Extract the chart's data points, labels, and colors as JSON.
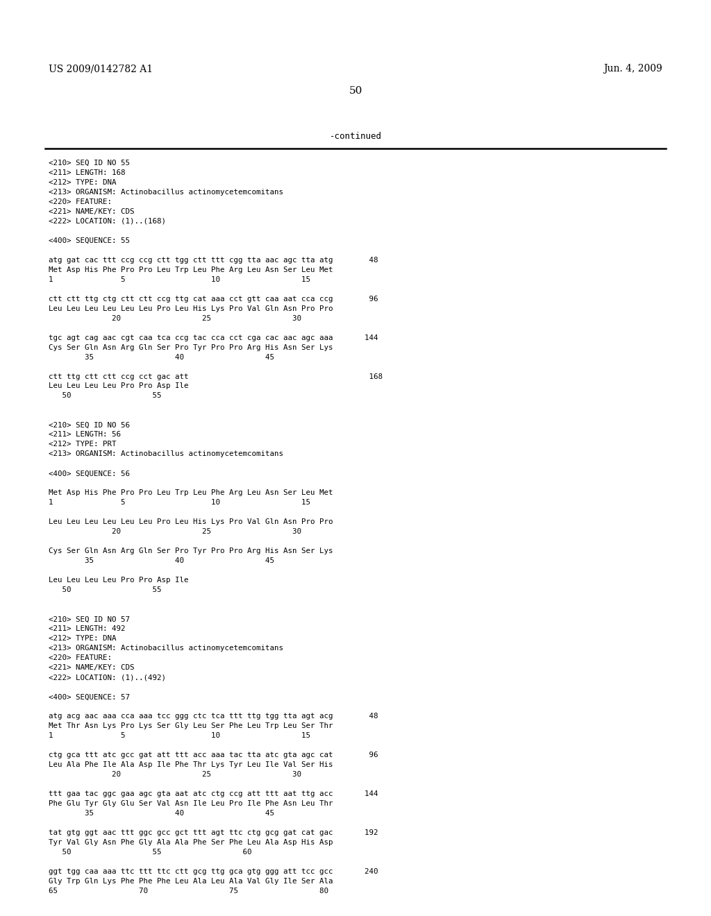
{
  "background_color": "#ffffff",
  "header_left": "US 2009/0142782 A1",
  "header_right": "Jun. 4, 2009",
  "page_number": "50",
  "continued_text": "-continued",
  "content_lines": [
    "<210> SEQ ID NO 55",
    "<211> LENGTH: 168",
    "<212> TYPE: DNA",
    "<213> ORGANISM: Actinobacillus actinomycetemcomitans",
    "<220> FEATURE:",
    "<221> NAME/KEY: CDS",
    "<222> LOCATION: (1)..(168)",
    "",
    "<400> SEQUENCE: 55",
    "",
    "atg gat cac ttt ccg ccg ctt tgg ctt ttt cgg tta aac agc tta atg        48",
    "Met Asp His Phe Pro Pro Leu Trp Leu Phe Arg Leu Asn Ser Leu Met",
    "1               5                   10                  15",
    "",
    "ctt ctt ttg ctg ctt ctt ccg ttg cat aaa cct gtt caa aat cca ccg        96",
    "Leu Leu Leu Leu Leu Leu Pro Leu His Lys Pro Val Gln Asn Pro Pro",
    "              20                  25                  30",
    "",
    "tgc agt cag aac cgt caa tca ccg tac cca cct cga cac aac agc aaa       144",
    "Cys Ser Gln Asn Arg Gln Ser Pro Tyr Pro Pro Arg His Asn Ser Lys",
    "        35                  40                  45",
    "",
    "ctt ttg ctt ctt ccg cct gac att                                        168",
    "Leu Leu Leu Leu Pro Pro Asp Ile",
    "   50                  55",
    "",
    "",
    "<210> SEQ ID NO 56",
    "<211> LENGTH: 56",
    "<212> TYPE: PRT",
    "<213> ORGANISM: Actinobacillus actinomycetemcomitans",
    "",
    "<400> SEQUENCE: 56",
    "",
    "Met Asp His Phe Pro Pro Leu Trp Leu Phe Arg Leu Asn Ser Leu Met",
    "1               5                   10                  15",
    "",
    "Leu Leu Leu Leu Leu Leu Pro Leu His Lys Pro Val Gln Asn Pro Pro",
    "              20                  25                  30",
    "",
    "Cys Ser Gln Asn Arg Gln Ser Pro Tyr Pro Pro Arg His Asn Ser Lys",
    "        35                  40                  45",
    "",
    "Leu Leu Leu Leu Pro Pro Asp Ile",
    "   50                  55",
    "",
    "",
    "<210> SEQ ID NO 57",
    "<211> LENGTH: 492",
    "<212> TYPE: DNA",
    "<213> ORGANISM: Actinobacillus actinomycetemcomitans",
    "<220> FEATURE:",
    "<221> NAME/KEY: CDS",
    "<222> LOCATION: (1)..(492)",
    "",
    "<400> SEQUENCE: 57",
    "",
    "atg acg aac aaa cca aaa tcc ggg ctc tca ttt ttg tgg tta agt acg        48",
    "Met Thr Asn Lys Pro Lys Ser Gly Leu Ser Phe Leu Trp Leu Ser Thr",
    "1               5                   10                  15",
    "",
    "ctg gca ttt atc gcc gat att ttt acc aaa tac tta atc gta agc cat        96",
    "Leu Ala Phe Ile Ala Asp Ile Phe Thr Lys Tyr Leu Ile Val Ser His",
    "              20                  25                  30",
    "",
    "ttt gaa tac ggc gaa agc gta aat atc ctg ccg att ttt aat ttg acc       144",
    "Phe Glu Tyr Gly Glu Ser Val Asn Ile Leu Pro Ile Phe Asn Leu Thr",
    "        35                  40                  45",
    "",
    "tat gtg ggt aac ttt ggc gcc gct ttt agt ttc ctg gcg gat cat gac       192",
    "Tyr Val Gly Asn Phe Gly Ala Ala Phe Ser Phe Leu Ala Asp His Asp",
    "   50                  55                  60",
    "",
    "ggt tgg caa aaa ttc ttt ttc ctt gcg ttg gca gtg ggg att tcc gcc       240",
    "Gly Trp Gln Lys Phe Phe Phe Leu Ala Leu Ala Val Gly Ile Ser Ala",
    "65                  70                  75                  80"
  ]
}
